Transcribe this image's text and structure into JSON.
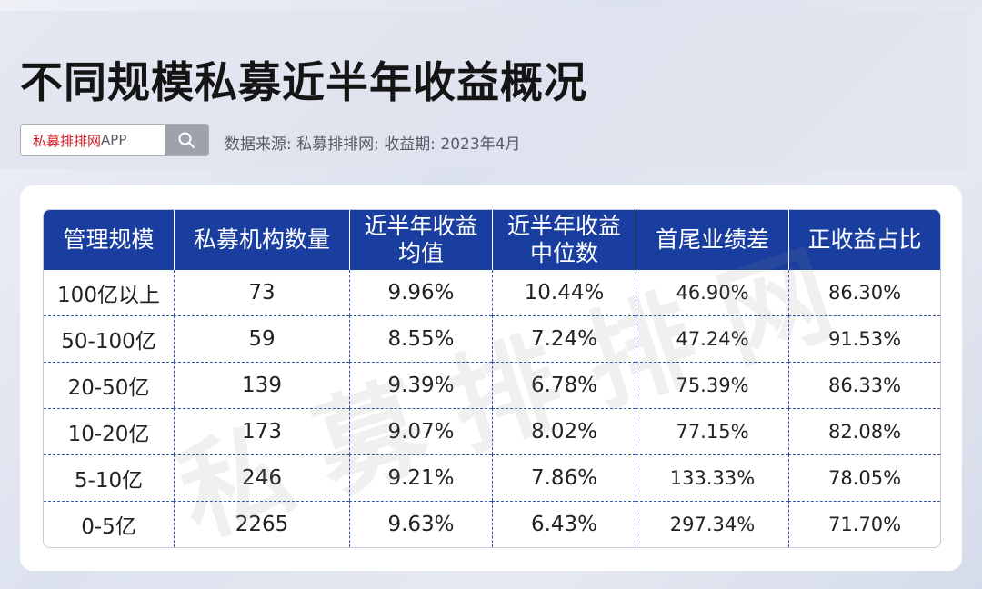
{
  "title": "不同规模私募近半年收益概况",
  "search": {
    "brand": "私募排排网",
    "suffix": "APP"
  },
  "source": "数据来源: 私募排排网; 收益期: 2023年4月",
  "watermark": "私募排排网",
  "table": {
    "headers": [
      {
        "line1": "管理规模",
        "line2": ""
      },
      {
        "line1": "私募机构数量",
        "line2": ""
      },
      {
        "line1": "近半年收益",
        "line2": "均值"
      },
      {
        "line1": "近半年收益",
        "line2": "中位数"
      },
      {
        "line1": "首尾业绩差",
        "line2": ""
      },
      {
        "line1": "正收益占比",
        "line2": ""
      }
    ],
    "rows": [
      [
        "100亿以上",
        "73",
        "9.96%",
        "10.44%",
        "46.90%",
        "86.30%"
      ],
      [
        "50-100亿",
        "59",
        "8.55%",
        "7.24%",
        "47.24%",
        "91.53%"
      ],
      [
        "20-50亿",
        "139",
        "9.39%",
        "6.78%",
        "75.39%",
        "86.33%"
      ],
      [
        "10-20亿",
        "173",
        "9.07%",
        "8.02%",
        "77.15%",
        "82.08%"
      ],
      [
        "5-10亿",
        "246",
        "9.21%",
        "7.86%",
        "133.33%",
        "78.05%"
      ],
      [
        "0-5亿",
        "2265",
        "9.63%",
        "6.43%",
        "297.34%",
        "71.70%"
      ]
    ]
  },
  "colors": {
    "header_bg": "#1a3ea0",
    "brand_red": "#d01a23",
    "grid_line": "#3a56b0"
  },
  "icons": {
    "search": "search-icon"
  }
}
